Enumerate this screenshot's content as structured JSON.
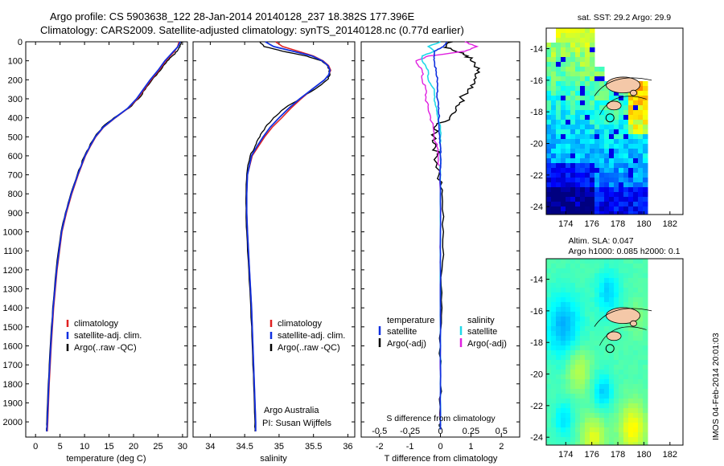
{
  "header": {
    "line1": "Argo profile: CS 5903638_122 28-Jan-2014 20140128_237 18.382S 177.396E",
    "line2": "Climatology: CARS2009. Satellite-adjusted climatology: synTS_20140128.nc (0.77d earlier)"
  },
  "colors": {
    "climatology": "#e02020",
    "satellite_clim": "#1030e0",
    "argo": "#000000",
    "sal_satellite": "#20d8e8",
    "sal_argo": "#e020e0"
  },
  "legend": {
    "climatology": "climatology",
    "satellite_adj": "satellite-adj. clim.",
    "argo_raw": "Argo(..raw -QC)",
    "temp_header": "temperature",
    "sal_header": "salinity",
    "satellite": "satellite",
    "argo_adj": "Argo(-adj)"
  },
  "annotations": {
    "argo_australia": "Argo Australia",
    "pi": "PI: Susan Wijffels",
    "s_diff_label": "S difference from climatology",
    "stamp": "IMOS 04-Feb-2014 20:01:03"
  },
  "map_titles": {
    "sst": "sat. SST: 29.2 Argo: 29.9",
    "sla_line1": "Altim. SLA: 0.047",
    "sla_line2": "Argo h1000: 0.085 h2000: 0.1"
  },
  "chart_data": [
    {
      "type": "line",
      "title": "",
      "xlabel": "temperature (deg C)",
      "ylabel": "",
      "xlim": [
        -2,
        31
      ],
      "ylim": [
        2080,
        0
      ],
      "xticks": [
        "0",
        "5",
        "10",
        "15",
        "20",
        "25",
        "30"
      ],
      "yticks": [
        "0",
        "100",
        "200",
        "300",
        "400",
        "500",
        "600",
        "700",
        "800",
        "900",
        "1000",
        "1100",
        "1200",
        "1300",
        "1400",
        "1500",
        "1600",
        "1700",
        "1800",
        "1900",
        "2000"
      ],
      "depth": [
        0,
        25,
        50,
        75,
        100,
        150,
        200,
        250,
        300,
        350,
        400,
        450,
        500,
        550,
        600,
        700,
        800,
        900,
        1000,
        1200,
        1400,
        1600,
        1800,
        2000,
        2050
      ],
      "series": [
        {
          "name": "climatology",
          "values": [
            29.3,
            29.0,
            28.4,
            27.5,
            26.6,
            25.2,
            23.6,
            22.2,
            20.8,
            18.9,
            16.3,
            13.9,
            12.3,
            11.2,
            10.2,
            8.7,
            7.4,
            6.3,
            5.4,
            4.4,
            3.7,
            3.2,
            2.8,
            2.5,
            2.4
          ]
        },
        {
          "name": "satellite-adj. clim.",
          "values": [
            29.5,
            29.1,
            28.2,
            27.3,
            26.4,
            25.0,
            23.4,
            22.0,
            20.6,
            18.8,
            16.2,
            13.8,
            12.2,
            11.1,
            10.1,
            8.6,
            7.3,
            6.2,
            5.3,
            4.3,
            3.6,
            3.1,
            2.7,
            2.4,
            2.3
          ]
        },
        {
          "name": "Argo(..raw -QC)",
          "values": [
            29.8,
            29.5,
            28.9,
            27.9,
            26.9,
            25.5,
            23.8,
            22.4,
            21.0,
            19.0,
            16.0,
            13.6,
            12.1,
            11.0,
            10.0,
            8.5,
            7.2,
            6.1,
            5.2,
            4.2,
            3.5,
            3.0,
            2.6,
            2.3,
            2.25
          ]
        }
      ]
    },
    {
      "type": "line",
      "title": "",
      "xlabel": "salinity",
      "ylabel": "",
      "xlim": [
        33.75,
        36.1
      ],
      "ylim": [
        2080,
        0
      ],
      "xticks": [
        "34",
        "34.5",
        "35",
        "35.5",
        "36"
      ],
      "depth": [
        0,
        25,
        50,
        75,
        100,
        125,
        150,
        175,
        200,
        250,
        300,
        350,
        400,
        450,
        500,
        550,
        600,
        700,
        800,
        900,
        1000,
        1200,
        1400,
        1600,
        1800,
        2000,
        2050
      ],
      "series": [
        {
          "name": "climatology",
          "values": [
            34.95,
            35.05,
            35.28,
            35.5,
            35.64,
            35.72,
            35.75,
            35.72,
            35.66,
            35.48,
            35.32,
            35.17,
            35.04,
            34.9,
            34.79,
            34.7,
            34.61,
            34.54,
            34.53,
            34.53,
            34.54,
            34.57,
            34.6,
            34.62,
            34.64,
            34.66,
            34.66
          ]
        },
        {
          "name": "satellite-adj. clim.",
          "values": [
            34.8,
            34.92,
            35.2,
            35.48,
            35.63,
            35.71,
            35.74,
            35.72,
            35.66,
            35.48,
            35.3,
            35.14,
            35.0,
            34.87,
            34.77,
            34.68,
            34.6,
            34.54,
            34.53,
            34.53,
            34.54,
            34.57,
            34.6,
            34.62,
            34.64,
            34.66,
            34.66
          ]
        },
        {
          "name": "Argo(..raw -QC)",
          "values": [
            34.72,
            34.78,
            35.05,
            35.4,
            35.62,
            35.7,
            35.73,
            35.74,
            35.7,
            35.52,
            35.3,
            35.08,
            34.92,
            34.8,
            34.72,
            34.65,
            34.58,
            34.53,
            34.52,
            34.52,
            34.53,
            34.56,
            34.59,
            34.61,
            34.63,
            34.65,
            34.65
          ]
        }
      ]
    },
    {
      "type": "line",
      "title": "",
      "xlabel": "T difference from climatology",
      "xlabel_top": "S difference from climatology",
      "ylabel": "",
      "xlim": [
        -2.6,
        2.6
      ],
      "ylim": [
        2080,
        0
      ],
      "xticks": [
        "-2",
        "-1",
        "0",
        "1",
        "2"
      ],
      "xticks_salinity": [
        "-0.5",
        "-0.25",
        "0",
        "0.25",
        "0.5"
      ],
      "depth": [
        0,
        25,
        50,
        75,
        100,
        150,
        200,
        250,
        300,
        350,
        400,
        450,
        500,
        550,
        600,
        700,
        800,
        1000,
        1200,
        1400,
        1600,
        1800,
        2000,
        2040
      ],
      "series": [
        {
          "name": "temperature satellite",
          "values": [
            0.2,
            0.1,
            -0.2,
            -0.2,
            -0.2,
            -0.15,
            -0.1,
            -0.1,
            -0.1,
            -0.05,
            -0.05,
            -0.05,
            -0.02,
            0,
            0,
            0,
            0,
            0,
            0,
            0,
            0,
            0,
            0,
            0
          ]
        },
        {
          "name": "temperature Argo(-adj)",
          "values": [
            0.4,
            0.2,
            0.5,
            0.9,
            1.0,
            1.2,
            1.1,
            0.9,
            0.7,
            0.5,
            0.3,
            -0.2,
            -0.2,
            -0.15,
            -0.1,
            -0.05,
            0.05,
            0.1,
            0.05,
            0.05,
            0,
            0,
            0,
            0
          ]
        },
        {
          "name": "salinity satellite",
          "values": [
            0,
            -0.1,
            -0.05,
            -0.15,
            -0.15,
            -0.1,
            -0.1,
            -0.05,
            -0.05,
            -0.03,
            -0.02,
            0,
            0,
            0,
            0,
            0,
            0,
            0,
            0,
            0,
            0,
            0,
            0,
            0
          ]
        },
        {
          "name": "salinity Argo(-adj)",
          "values": [
            0.2,
            0.3,
            0.2,
            -0.1,
            -0.2,
            -0.15,
            -0.15,
            -0.12,
            -0.12,
            -0.1,
            -0.08,
            -0.06,
            -0.05,
            -0.03,
            -0.02,
            0,
            0,
            0,
            0,
            0,
            0,
            0,
            0,
            0
          ]
        }
      ]
    },
    {
      "type": "heatmap",
      "title": "sat. SST: 29.2 Argo: 29.9",
      "xticks": [
        "174",
        "176",
        "178",
        "180",
        "182"
      ],
      "yticks": [
        "-14",
        "-16",
        "-18",
        "-20",
        "-22",
        "-24"
      ],
      "xlim": [
        172.5,
        183
      ],
      "ylim": [
        -24.5,
        -12.7
      ]
    },
    {
      "type": "heatmap",
      "title": "Altim. SLA: 0.047",
      "xticks": [
        "174",
        "176",
        "178",
        "180",
        "182"
      ],
      "yticks": [
        "-14",
        "-16",
        "-18",
        "-20",
        "-22",
        "-24"
      ],
      "xlim": [
        172.5,
        183
      ],
      "ylim": [
        -24.5,
        -12.7
      ]
    }
  ]
}
